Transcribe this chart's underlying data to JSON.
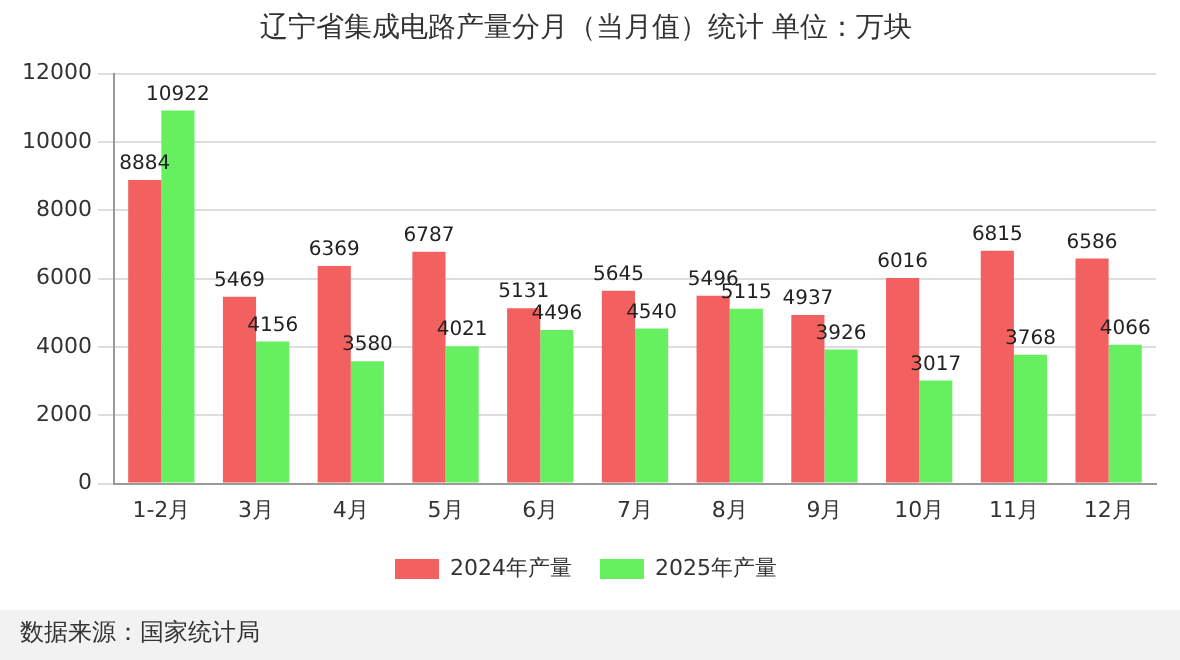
{
  "chart_data": {
    "type": "bar",
    "title": "辽宁省集成电路产量分月（当月值）统计 单位：万块",
    "categories": [
      "1-2月",
      "3月",
      "4月",
      "5月",
      "6月",
      "7月",
      "8月",
      "9月",
      "10月",
      "11月",
      "12月"
    ],
    "series": [
      {
        "name": "2024年产量",
        "color": "#f26060",
        "values": [
          8884,
          5469,
          6369,
          6787,
          5131,
          5645,
          5496,
          4937,
          6016,
          6815,
          6586
        ]
      },
      {
        "name": "2025年产量",
        "color": "#66f060",
        "values": [
          10922,
          4156,
          3580,
          4021,
          4496,
          4540,
          5115,
          3926,
          3017,
          3768,
          4066
        ]
      }
    ],
    "ylim": [
      0,
      12000
    ],
    "yticks": [
      0,
      2000,
      4000,
      6000,
      8000,
      10000,
      12000
    ],
    "grid": "y",
    "legend": "bottom",
    "data_labels": true,
    "annotations": [
      "数据来源：国家统计局"
    ]
  }
}
